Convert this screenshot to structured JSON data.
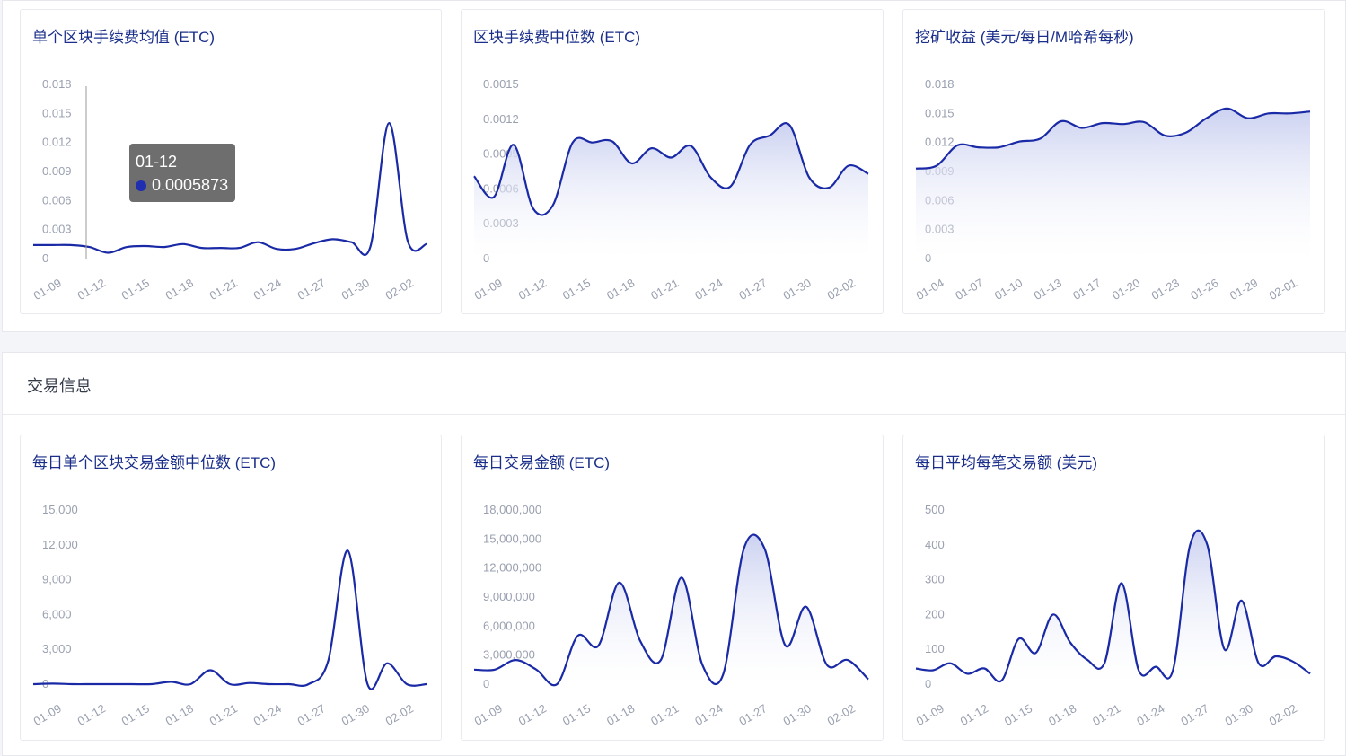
{
  "section": {
    "title": "交易信息"
  },
  "colors": {
    "line": "#1a2aa6",
    "fill_top": "#c9cff0",
    "tick": "#9aa0b0"
  },
  "tooltip": {
    "date": "01-12",
    "value": "0.0005873"
  },
  "chart_data": [
    {
      "id": "avg-fee",
      "type": "line",
      "title": "单个区块手续费均值 (ETC)",
      "area": false,
      "yticks": [
        "0",
        "0.003",
        "0.006",
        "0.009",
        "0.012",
        "0.015",
        "0.018"
      ],
      "ylim": [
        0,
        0.018
      ],
      "xticks": [
        "01-09",
        "01-12",
        "01-15",
        "01-18",
        "01-21",
        "01-24",
        "01-27",
        "01-30",
        "02-02"
      ],
      "values": [
        0.0014,
        0.0014,
        0.0014,
        0.0012,
        0.0006,
        0.0012,
        0.0013,
        0.0012,
        0.0015,
        0.0011,
        0.0011,
        0.0011,
        0.0017,
        0.001,
        0.001,
        0.0016,
        0.002,
        0.0017,
        0.0012,
        0.014,
        0.0018,
        0.0015
      ]
    },
    {
      "id": "median-fee",
      "type": "area",
      "title": "区块手续费中位数 (ETC)",
      "area": true,
      "yticks": [
        "0",
        "0.0003",
        "0.0006",
        "0.0009",
        "0.0012",
        "0.0015"
      ],
      "ylim": [
        0,
        0.0015
      ],
      "xticks": [
        "01-09",
        "01-12",
        "01-15",
        "01-18",
        "01-21",
        "01-24",
        "01-27",
        "01-30",
        "02-02"
      ],
      "values": [
        0.00071,
        0.00053,
        0.00098,
        0.00043,
        0.00046,
        0.001,
        0.001,
        0.00101,
        0.00082,
        0.00095,
        0.00087,
        0.00097,
        0.0007,
        0.00062,
        0.00098,
        0.00106,
        0.00115,
        0.0007,
        0.00061,
        0.0008,
        0.00073
      ]
    },
    {
      "id": "mining-revenue",
      "type": "area",
      "title": "挖矿收益 (美元/每日/M哈希每秒)",
      "area": true,
      "yticks": [
        "0",
        "0.003",
        "0.006",
        "0.009",
        "0.012",
        "0.015",
        "0.018"
      ],
      "ylim": [
        0,
        0.018
      ],
      "xticks": [
        "01-04",
        "01-07",
        "01-10",
        "01-13",
        "01-17",
        "01-20",
        "01-23",
        "01-26",
        "01-29",
        "02-01"
      ],
      "values": [
        0.0093,
        0.0096,
        0.0117,
        0.0115,
        0.0115,
        0.0121,
        0.0124,
        0.0142,
        0.0135,
        0.014,
        0.0139,
        0.0141,
        0.0127,
        0.013,
        0.0145,
        0.0155,
        0.0145,
        0.015,
        0.015,
        0.0152
      ]
    },
    {
      "id": "median-tx-amount",
      "type": "line",
      "title": "每日单个区块交易金额中位数 (ETC)",
      "area": false,
      "yticks": [
        "0",
        "3,000",
        "6,000",
        "9,000",
        "12,000",
        "15,000"
      ],
      "ylim": [
        0,
        15000
      ],
      "xticks": [
        "01-09",
        "01-12",
        "01-15",
        "01-18",
        "01-21",
        "01-24",
        "01-27",
        "01-30",
        "02-02"
      ],
      "values": [
        0,
        50,
        0,
        0,
        0,
        0,
        0,
        200,
        0,
        1200,
        0,
        100,
        0,
        0,
        0,
        2000,
        11500,
        0,
        1800,
        0,
        0
      ]
    },
    {
      "id": "daily-tx-amount",
      "type": "area",
      "title": "每日交易金额 (ETC)",
      "area": true,
      "yticks": [
        "0",
        "3,000,000",
        "6,000,000",
        "9,000,000",
        "12,000,000",
        "15,000,000",
        "18,000,000"
      ],
      "ylim": [
        0,
        18000000
      ],
      "xticks": [
        "01-09",
        "01-12",
        "01-15",
        "01-18",
        "01-21",
        "01-24",
        "01-27",
        "01-30",
        "02-02"
      ],
      "values": [
        1500000,
        1500000,
        2500000,
        1500000,
        0,
        5000000,
        4000000,
        10500000,
        4500000,
        2500000,
        11000000,
        2000000,
        1000000,
        14000000,
        14000000,
        4000000,
        8000000,
        2000000,
        2500000,
        500000
      ]
    },
    {
      "id": "avg-tx-usd",
      "type": "area",
      "title": "每日平均每笔交易额 (美元)",
      "area": true,
      "yticks": [
        "0",
        "100",
        "200",
        "300",
        "400",
        "500"
      ],
      "ylim": [
        0,
        500
      ],
      "xticks": [
        "01-09",
        "01-12",
        "01-15",
        "01-18",
        "01-21",
        "01-24",
        "01-27",
        "01-30",
        "02-02"
      ],
      "values": [
        45,
        40,
        60,
        30,
        45,
        10,
        130,
        90,
        200,
        120,
        70,
        60,
        290,
        40,
        50,
        40,
        400,
        400,
        100,
        240,
        60,
        80,
        65,
        30
      ]
    }
  ]
}
